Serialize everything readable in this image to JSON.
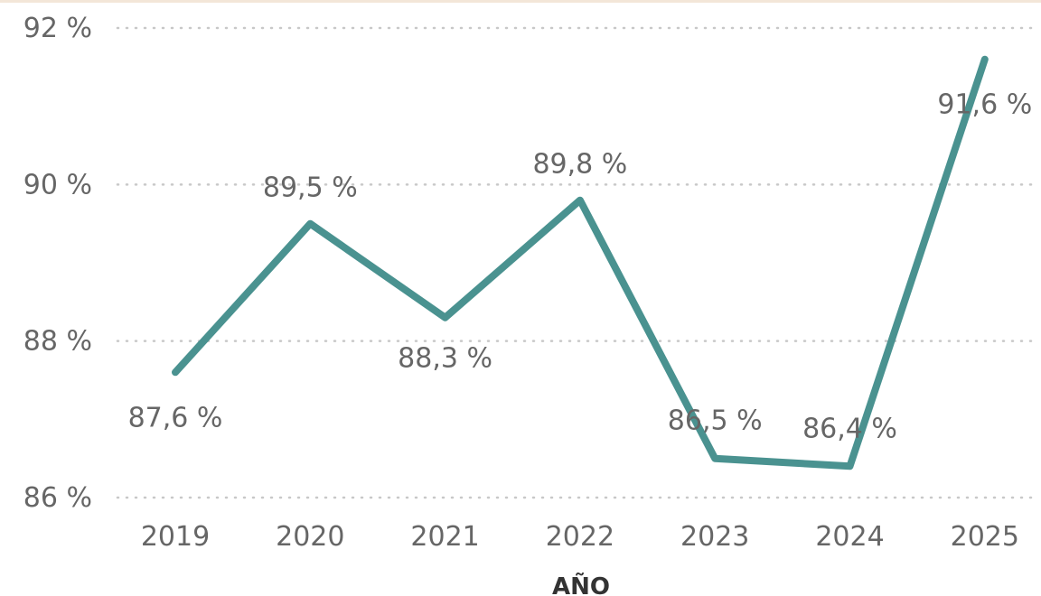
{
  "chart_data": {
    "type": "line",
    "x": [
      "2019",
      "2020",
      "2021",
      "2022",
      "2023",
      "2024",
      "2025"
    ],
    "series": [
      {
        "values": [
          87.6,
          89.5,
          88.3,
          89.8,
          86.5,
          86.4,
          91.6
        ],
        "labels": [
          "87,6 %",
          "89,5 %",
          "88,3 %",
          "89,8 %",
          "86,5 %",
          "86,4 %",
          "91,6 %"
        ],
        "color": "#4a9290"
      }
    ],
    "xlabel": "AÑO",
    "ylabel": "",
    "ylim": [
      86,
      92
    ],
    "yticks": [
      92,
      90,
      88,
      86
    ],
    "ytick_labels": [
      "92 %",
      "90 %",
      "88 %",
      "86 %"
    ],
    "grid": true,
    "grid_color": "#c8c8c8",
    "text_color": "#666666"
  }
}
